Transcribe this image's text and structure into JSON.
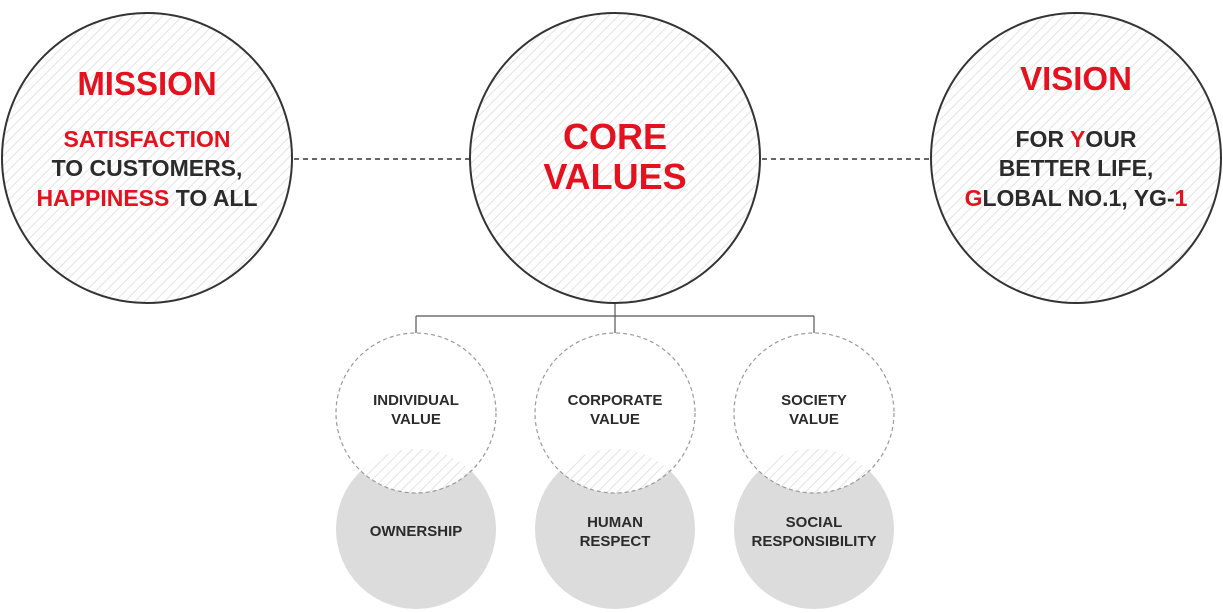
{
  "colors": {
    "accent": "#e4111e",
    "text": "#2b2b2b",
    "circle_stroke": "#333333",
    "hatch": "#d8d8d8",
    "dashed_stroke": "#9a9a9a",
    "filled_circle": "#dcdcdc"
  },
  "mission": {
    "title": "MISSION",
    "line1_red": "SATISFACTION",
    "line2": "TO CUSTOMERS,",
    "line3_red": "HAPPINESS",
    "line3_rest": " TO ALL"
  },
  "core": {
    "title_line1": "CORE",
    "title_line2": "VALUES"
  },
  "vision": {
    "title": "VISION",
    "line1_a": "FOR ",
    "line1_red": "Y",
    "line1_b": "OUR",
    "line2": "BETTER LIFE,",
    "line3_red_g": "G",
    "line3_mid": "LOBAL NO.1, YG-",
    "line3_red_1": "1"
  },
  "values": [
    {
      "top_line1": "INDIVIDUAL",
      "top_line2": "VALUE",
      "bottom_line1": "OWNERSHIP",
      "bottom_line2": ""
    },
    {
      "top_line1": "CORPORATE",
      "top_line2": "VALUE",
      "bottom_line1": "HUMAN",
      "bottom_line2": "RESPECT"
    },
    {
      "top_line1": "SOCIETY",
      "top_line2": "VALUE",
      "bottom_line1": "SOCIAL",
      "bottom_line2": "RESPONSIBILITY"
    }
  ]
}
